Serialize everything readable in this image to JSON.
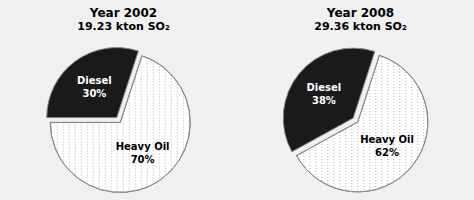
{
  "chart_data": [
    {
      "type": "pie",
      "title": "Year 2002",
      "subtitle": "19.23 kton SO₂",
      "categories": [
        "Heavy Oil",
        "Diesel"
      ],
      "values": [
        70,
        30
      ],
      "value_labels": [
        "70%",
        "30%"
      ],
      "colors": [
        "#ffffff",
        "#1a1a1a"
      ],
      "data_labels": true
    },
    {
      "type": "pie",
      "title": "Year 2008",
      "subtitle": "29.36 kton SO₂",
      "categories": [
        "Heavy Oil",
        "Diesel"
      ],
      "values": [
        62,
        38
      ],
      "value_labels": [
        "62%",
        "38%"
      ],
      "colors": [
        "#ffffff",
        "#1a1a1a"
      ],
      "data_labels": true
    }
  ]
}
